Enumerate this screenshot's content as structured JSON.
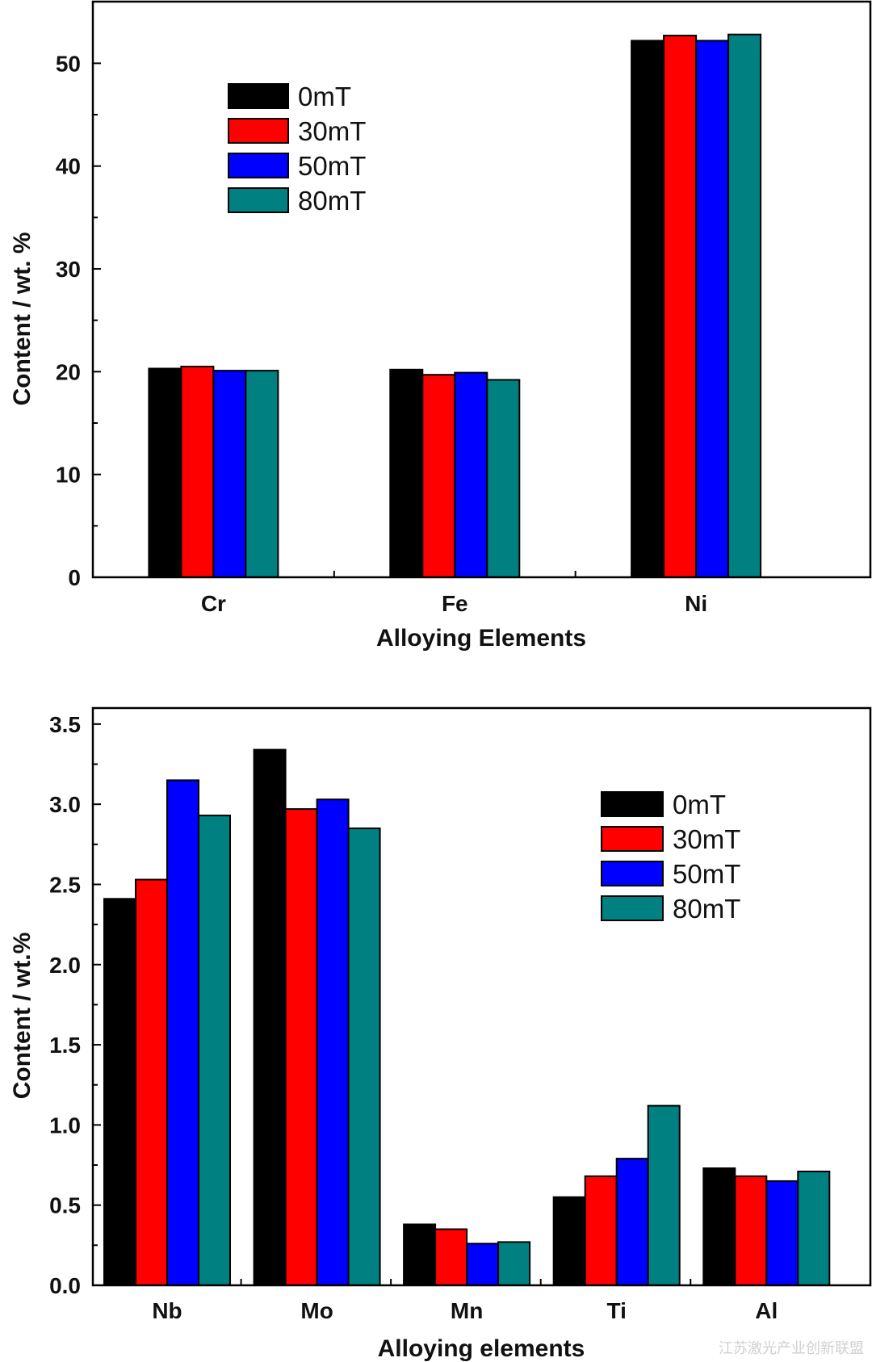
{
  "chart_data": [
    {
      "type": "bar",
      "title": "",
      "xlabel": "Alloying Elements",
      "ylabel": "Content / wt. %",
      "categories": [
        "Cr",
        "Fe",
        "Ni"
      ],
      "ylim": [
        0,
        56
      ],
      "yticks": [
        0,
        10,
        20,
        30,
        40,
        50
      ],
      "ytick_labels": [
        "0",
        "10",
        "20",
        "30",
        "40",
        "50"
      ],
      "legend_position": "top-left",
      "series": [
        {
          "name": "0mT",
          "color": "#000000",
          "values": [
            20.3,
            20.2,
            52.2
          ]
        },
        {
          "name": "30mT",
          "color": "#ff0000",
          "values": [
            20.5,
            19.7,
            52.7
          ]
        },
        {
          "name": "50mT",
          "color": "#0000ff",
          "values": [
            20.1,
            19.9,
            52.2
          ]
        },
        {
          "name": "80mT",
          "color": "#008080",
          "values": [
            20.1,
            19.2,
            52.8
          ]
        }
      ]
    },
    {
      "type": "bar",
      "title": "",
      "xlabel": "Alloying elements",
      "ylabel": "Content / wt.%",
      "categories": [
        "Nb",
        "Mo",
        "Mn",
        "Ti",
        "Al"
      ],
      "ylim": [
        0,
        3.6
      ],
      "yticks": [
        0,
        0.5,
        1.0,
        1.5,
        2.0,
        2.5,
        3.0,
        3.5
      ],
      "ytick_labels": [
        "0.0",
        "0.5",
        "1.0",
        "1.5",
        "2.0",
        "2.5",
        "3.0",
        "3.5"
      ],
      "legend_position": "top-right",
      "series": [
        {
          "name": "0mT",
          "color": "#000000",
          "values": [
            2.41,
            3.34,
            0.38,
            0.55,
            0.73
          ]
        },
        {
          "name": "30mT",
          "color": "#ff0000",
          "values": [
            2.53,
            2.97,
            0.35,
            0.68,
            0.68
          ]
        },
        {
          "name": "50mT",
          "color": "#0000ff",
          "values": [
            3.15,
            3.03,
            0.26,
            0.79,
            0.65
          ]
        },
        {
          "name": "80mT",
          "color": "#008080",
          "values": [
            2.93,
            2.85,
            0.27,
            1.12,
            0.71
          ]
        }
      ]
    }
  ],
  "watermark": "江苏激光产业创新联盟"
}
